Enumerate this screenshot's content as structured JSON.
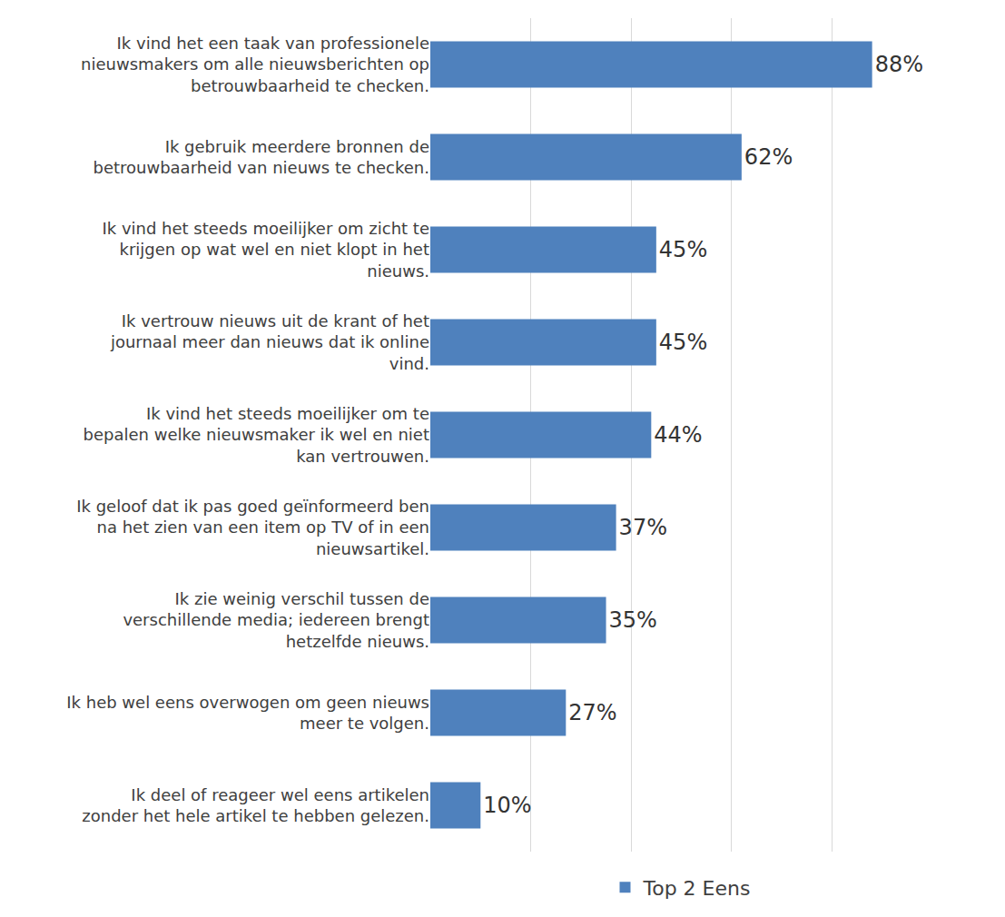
{
  "chart_data": {
    "type": "bar",
    "orientation": "horizontal",
    "categories": [
      "Ik vind het een taak van professionele nieuwsmakers om alle nieuwsberichten op betrouwbaarheid te checken.",
      "Ik gebruik meerdere bronnen de betrouwbaarheid van nieuws te checken.",
      "Ik vind het steeds moeilijker om zicht te krijgen op wat wel en niet klopt in het nieuws.",
      "Ik vertrouw nieuws uit de krant of het journaal meer dan nieuws dat ik online vind.",
      "Ik vind het steeds moeilijker om te bepalen welke nieuwsmaker ik wel en niet kan vertrouwen.",
      "Ik geloof dat ik pas goed geïnformeerd ben na het zien van een item op TV of in een nieuwsartikel.",
      "Ik zie weinig verschil tussen de verschillende media; iedereen brengt hetzelfde nieuws.",
      "Ik heb wel eens overwogen om geen nieuws meer te volgen.",
      "Ik deel of reageer wel eens artikelen zonder het hele artikel te hebben gelezen."
    ],
    "series": [
      {
        "name": "Top 2 Eens",
        "color": "#4f81bd",
        "values": [
          88,
          62,
          45,
          45,
          44,
          37,
          35,
          27,
          10
        ],
        "value_labels": [
          "88%",
          "62%",
          "45%",
          "45%",
          "44%",
          "37%",
          "35%",
          "27%",
          "10%"
        ]
      }
    ],
    "xlim": [
      0,
      100
    ],
    "xticks": [
      0,
      20,
      40,
      60,
      80,
      100
    ],
    "grid": true,
    "data_labels": true,
    "tick_labels": "y",
    "legend": "bottom"
  }
}
